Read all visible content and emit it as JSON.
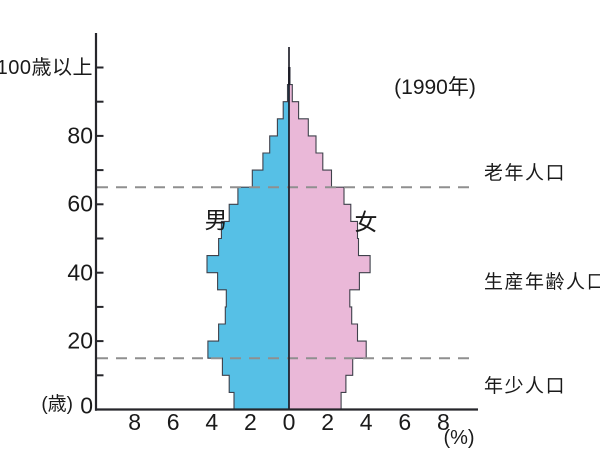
{
  "annotation": {
    "year": "(1990年)"
  },
  "pyramid": {
    "male_label": "男",
    "female_label": "女"
  },
  "axis": {
    "y_unit": "(歳)",
    "x_unit": "(%)"
  },
  "side_labels": [
    {
      "text": "老年人口"
    },
    {
      "text": "生産年齢人口"
    },
    {
      "text": "年少人口"
    }
  ],
  "colors": {
    "male_fill": "#56c0e6",
    "female_fill": "#eab8d8",
    "outline": "#3f414b",
    "axis": "#26262b",
    "center_line": "#14141e",
    "dashed_guide": "#8f8f8f",
    "text": "#1a1a1a"
  },
  "chart_data": {
    "type": "bar",
    "subtype": "population_pyramid",
    "title": "(1990年)",
    "x_axis_label": "(%)",
    "y_axis_label": "(歳)",
    "x_ticks_pct": [
      8,
      6,
      4,
      2,
      0,
      2,
      4,
      6,
      8
    ],
    "x_range_pct_each_side": [
      0,
      9.8
    ],
    "y_tick_step_years": 10,
    "y_tick_labels": [
      {
        "age": 0,
        "label": "0"
      },
      {
        "age": 20,
        "label": "20"
      },
      {
        "age": 40,
        "label": "40"
      },
      {
        "age": 60,
        "label": "60"
      },
      {
        "age": 80,
        "label": "80"
      },
      {
        "age": 100,
        "label": "100歳以上"
      }
    ],
    "age_brackets": [
      "0-4",
      "5-9",
      "10-14",
      "15-19",
      "20-24",
      "25-29",
      "30-34",
      "35-39",
      "40-44",
      "45-49",
      "50-54",
      "55-59",
      "60-64",
      "65-69",
      "70-74",
      "75-79",
      "80-84",
      "85-89",
      "90-94",
      "95-99"
    ],
    "series": [
      {
        "name": "男",
        "side": "left",
        "values_pct": [
          2.85,
          3.1,
          3.45,
          4.2,
          3.65,
          3.3,
          3.25,
          3.7,
          4.25,
          3.65,
          3.5,
          3.1,
          2.65,
          1.9,
          1.35,
          1.0,
          0.6,
          0.3,
          0.08,
          0.02
        ]
      },
      {
        "name": "女",
        "side": "right",
        "values_pct": [
          2.7,
          2.95,
          3.3,
          4.0,
          3.55,
          3.25,
          3.15,
          3.65,
          4.2,
          3.6,
          3.55,
          3.2,
          2.85,
          2.2,
          1.75,
          1.4,
          1.0,
          0.5,
          0.17,
          0.05
        ]
      }
    ],
    "centenarian_spike": {
      "label": "100歳以上",
      "top_age": 106
    },
    "dashed_guides": [
      {
        "age": 65,
        "label": "老年人口"
      },
      {
        "age": 15,
        "label": "年少人口"
      }
    ],
    "grid": false,
    "legend_position": "inside-on-bars"
  }
}
